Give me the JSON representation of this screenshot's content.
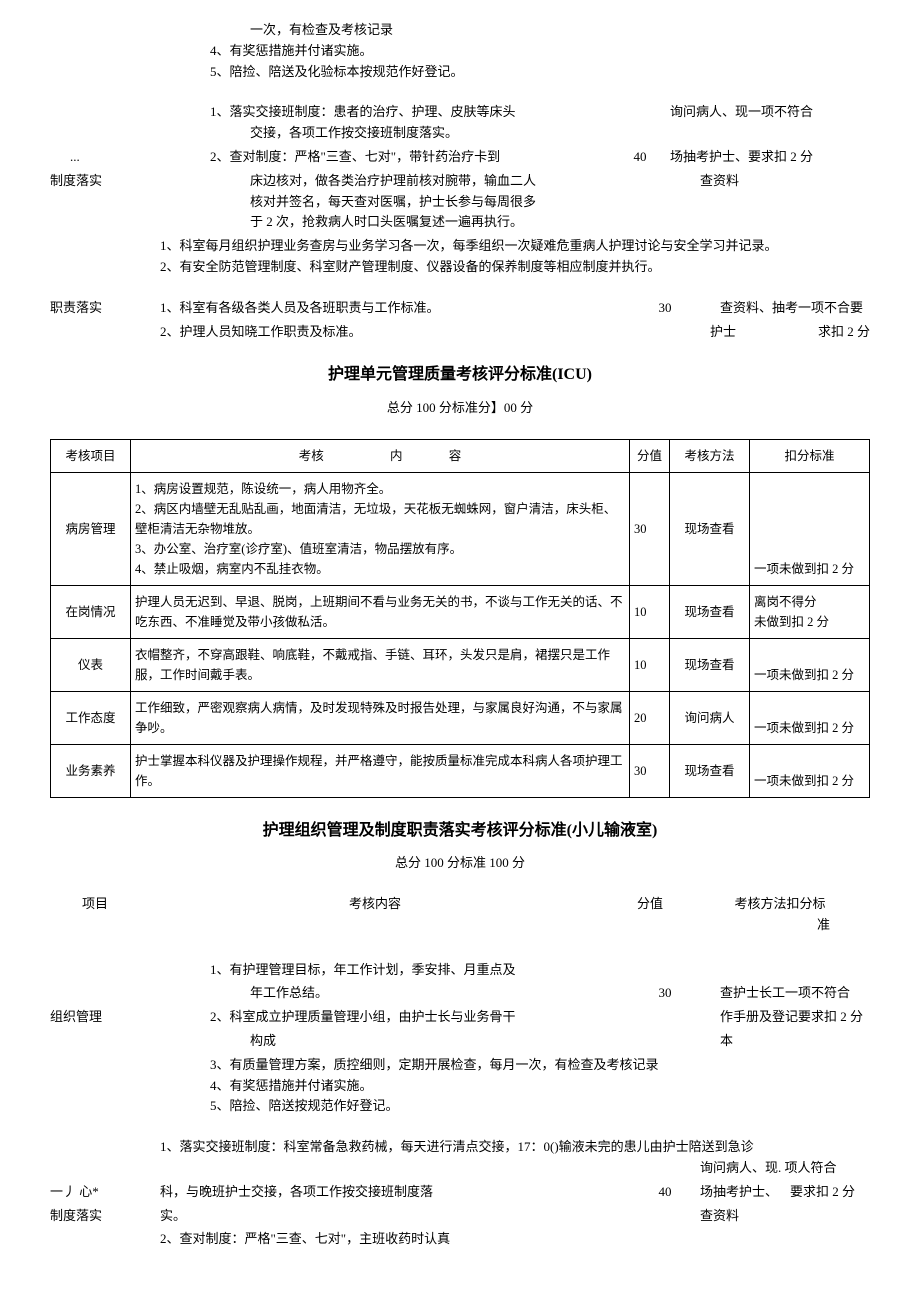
{
  "topBlock": {
    "lines": [
      "一次，有检查及考核记录",
      "4、有奖惩措施并付诸实施。",
      "5、陪捡、陪送及化验标本按规范作好登记。"
    ]
  },
  "systemBlock": {
    "ellipsis": "...",
    "label": "制度落实",
    "content1": "1、落实交接班制度：患者的治疗、护理、皮肤等床头",
    "content1sub": "交接，各项工作按交接班制度落实。",
    "content2": "2、查对制度：严格\"三查、七对\"，带针药治疗卡到",
    "content2sub1": "床边核对，做各类治疗护理前核对腕带，输血二人",
    "content2sub2": "核对并签名，每天查对医嘱，护士长参与每周很多",
    "content2sub3": "于 2 次，抢救病人时口头医嘱复述一遍再执行。",
    "score": "40",
    "method1": "询问病人、现一项不符合",
    "method2": "场抽考护士、要求扣 2 分",
    "method3": "查资料",
    "extra1": "1、科室每月组织护理业务查房与业务学习各一次，每季组织一次疑难危重病人护理讨论与安全学习并记录。",
    "extra2": "2、有安全防范管理制度、科室财产管理制度、仪器设备的保养制度等相应制度并执行。"
  },
  "dutyBlock": {
    "label": "职责落实",
    "line1": "1、科室有各级各类人员及各班职责与工作标准。",
    "line2": "2、护理人员知晓工作职责及标准。",
    "score": "30",
    "method1": "查资料、抽考一项不合要",
    "method2": "护士",
    "penalty": "求扣 2 分"
  },
  "titleICU": "护理单元管理质量考核评分标准(ICU)",
  "scoreLineICU": "总分 100 分标准分】00 分",
  "icuTable": {
    "headers": {
      "item": "考核项目",
      "content": "考核",
      "contentMid": "内",
      "contentEnd": "容",
      "score": "分值",
      "method": "考核方法",
      "penalty": "扣分标准"
    },
    "rows": [
      {
        "item": "病房管理",
        "content": "1、病房设置规范，陈设统一，病人用物齐全。\n2、病区内墙壁无乱贴乱画，地面清洁，无垃圾，天花板无蜘蛛网，窗户清洁，床头柜、壁柜清洁无杂物堆放。\n3、办公室、治疗室(诊疗室)、值班室清洁，物品摆放有序。\n4、禁止吸烟，病室内不乱挂衣物。",
        "score": "30",
        "method": "现场查看",
        "penalty": "一项未做到扣 2 分"
      },
      {
        "item": "在岗情况",
        "content": "护理人员无迟到、早退、脱岗，上班期间不看与业务无关的书，不谈与工作无关的话、不吃东西、不准睡觉及带小孩做私活。",
        "score": "10",
        "method": "现场查看",
        "penalty": "离岗不得分\n未做到扣 2 分"
      },
      {
        "item": "仪表",
        "content": "衣帽整齐，不穿高跟鞋、响底鞋，不戴戒指、手链、耳环，头发只是肩，裙摆只是工作服，工作时间戴手表。",
        "score": "10",
        "method": "现场查看",
        "penalty": "一项未做到扣 2 分"
      },
      {
        "item": "工作态度",
        "content": "工作细致，严密观察病人病情，及时发现特殊及时报告处理，与家属良好沟通，不与家属争吵。",
        "score": "20",
        "method": "询问病人",
        "penalty": "一项未做到扣 2 分"
      },
      {
        "item": "业务素养",
        "content": "护士掌握本科仪器及护理操作规程，并严格遵守，能按质量标准完成本科病人各项护理工作。",
        "score": "30",
        "method": "现场查看",
        "penalty": "一项未做到扣 2 分"
      }
    ]
  },
  "titlePed": "护理组织管理及制度职责落实考核评分标准(小儿输液室)",
  "scoreLinePed": "总分 100 分标准 100 分",
  "pedHeader": {
    "item": "项目",
    "content": "考核内容",
    "score": "分值",
    "method": "考核方法扣分标",
    "methodSub": "准"
  },
  "orgBlock": {
    "label": "组织管理",
    "lines": [
      "1、有护理管理目标，年工作计划，季安排、月重点及",
      "年工作总结。",
      "2、科室成立护理质量管理小组，由护士长与业务骨干",
      "构成",
      "3、有质量管理方案，质控细则，定期开展检查，每月一次，有检查及考核记录",
      "4、有奖惩措施并付诸实施。",
      "5、陪捡、陪送按规范作好登记。"
    ],
    "score": "30",
    "method1": "查护士长工一项不符合",
    "method2": "作手册及登记要求扣 2 分",
    "method3": "本"
  },
  "pedSystemBlock": {
    "labelPrefix": "一丿 心*",
    "label": "制度落实",
    "line1": "1、落实交接班制度：科室常备急救药械，每天进行清点交接，17：0()输液未完的患儿由护士陪送到急诊",
    "line2": "科，与晚班护士交接，各项工作按交接班制度落",
    "line2sub": "实。",
    "line3": "2、查对制度：严格\"三查、七对\"，主班收药时认真",
    "score": "40",
    "method1": "询问病人、现. 项人符合",
    "method2": "场抽考护士、",
    "method2b": "要求扣 2 分",
    "method3": "查资料"
  }
}
